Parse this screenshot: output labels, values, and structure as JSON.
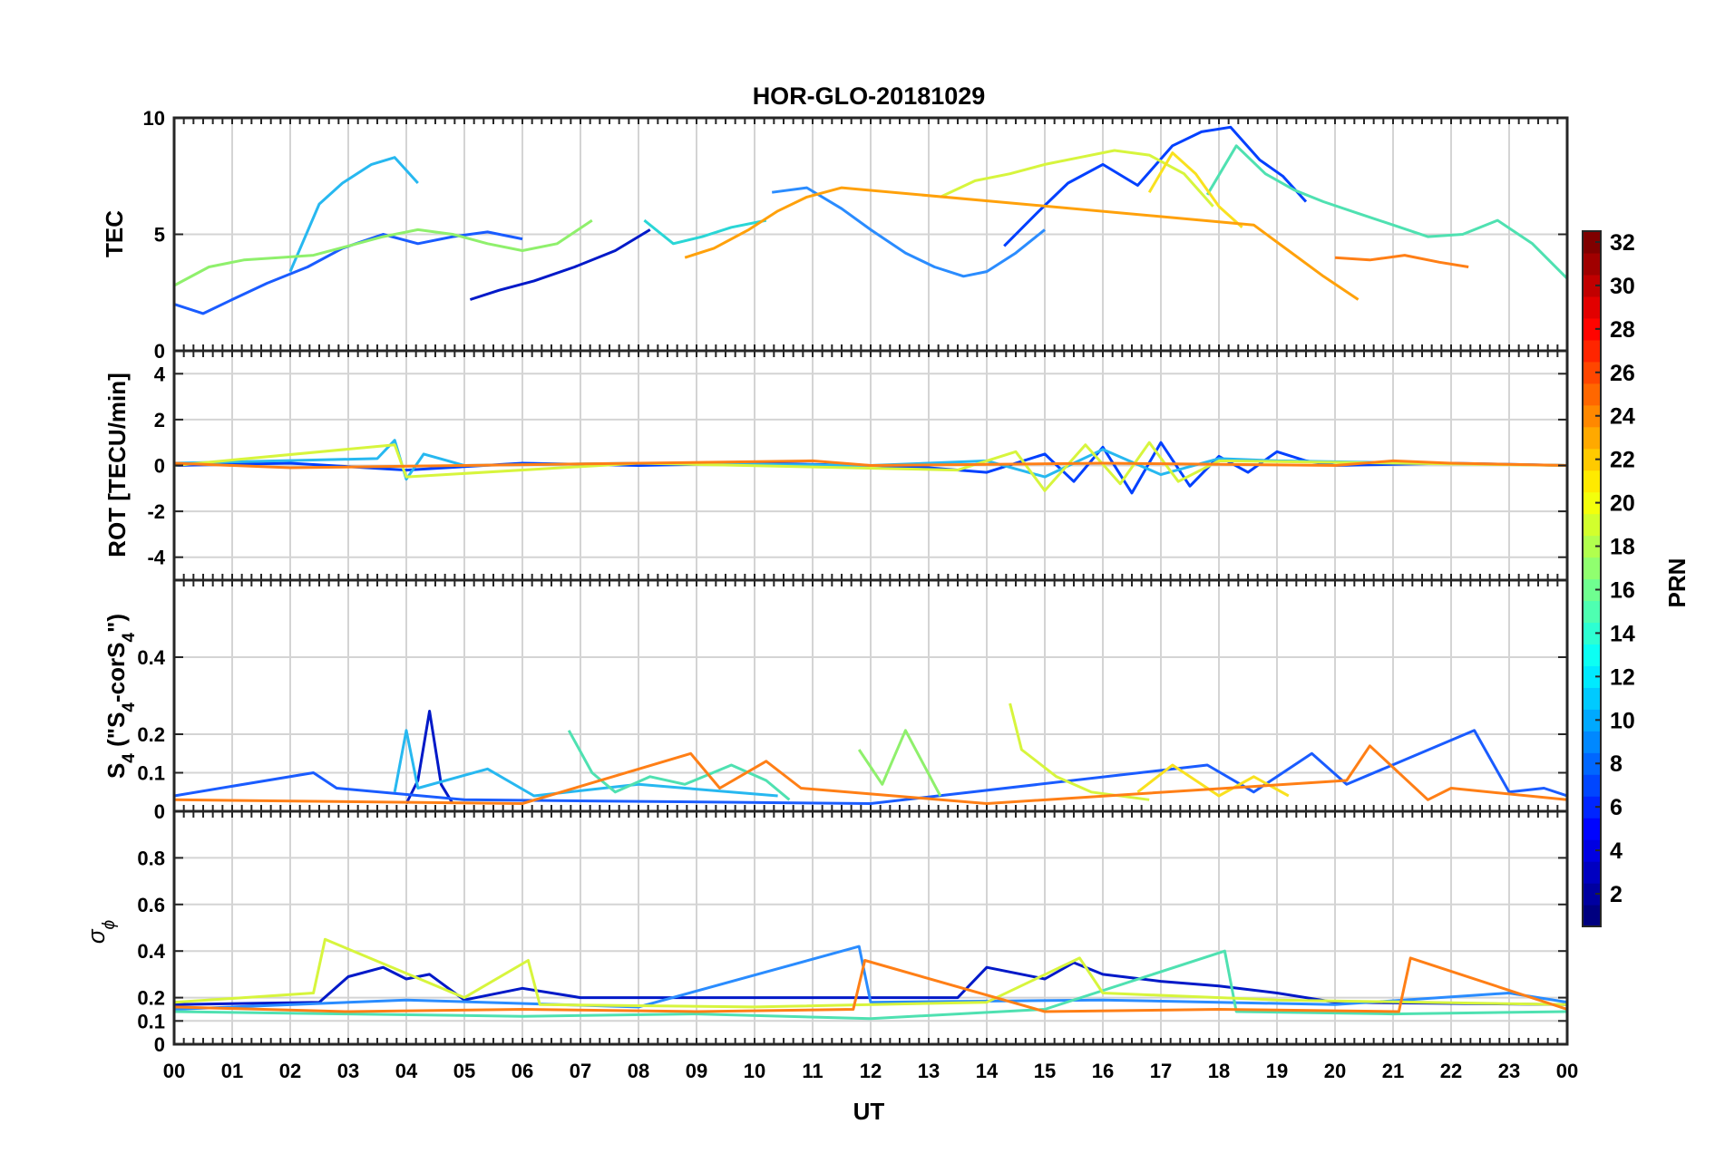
{
  "chart_data": {
    "type": "line",
    "title": "HOR-GLO-20181029",
    "xlabel": "UT",
    "x_tick_labels": [
      "00",
      "01",
      "02",
      "03",
      "04",
      "05",
      "06",
      "07",
      "08",
      "09",
      "10",
      "11",
      "12",
      "13",
      "14",
      "15",
      "16",
      "17",
      "18",
      "19",
      "20",
      "21",
      "22",
      "23",
      "00"
    ],
    "xlim": [
      0,
      24
    ],
    "grid": true,
    "panels": [
      {
        "name": "tec",
        "ylabel": "TEC",
        "ylim": [
          0,
          10
        ],
        "yticks": [
          0,
          5,
          10
        ],
        "ytick_labels": [
          "0",
          "5",
          "10"
        ],
        "series": [
          {
            "prn": 3,
            "color": "#0019c8",
            "x": [
              5.1,
              5.6,
              6.2,
              6.9,
              7.6,
              8.2
            ],
            "y": [
              2.2,
              2.6,
              3.0,
              3.6,
              4.3,
              5.2
            ]
          },
          {
            "prn": 5,
            "color": "#0040ff",
            "x": [
              14.3,
              14.9,
              15.4,
              16.0,
              16.6,
              17.2,
              17.7,
              18.2,
              18.7,
              19.1,
              19.5
            ],
            "y": [
              4.5,
              6.0,
              7.2,
              8.0,
              7.1,
              8.8,
              9.4,
              9.6,
              8.2,
              7.5,
              6.4
            ]
          },
          {
            "prn": 7,
            "color": "#1a5cff",
            "x": [
              0.0,
              0.5,
              1.0,
              1.6,
              2.3,
              2.9,
              3.6,
              4.2,
              4.8,
              5.4,
              6.0
            ],
            "y": [
              2.0,
              1.6,
              2.2,
              2.9,
              3.6,
              4.4,
              5.0,
              4.6,
              4.9,
              5.1,
              4.8
            ]
          },
          {
            "prn": 9,
            "color": "#2a8cff",
            "x": [
              10.3,
              10.9,
              11.5,
              12.0,
              12.6,
              13.1,
              13.6,
              14.0,
              14.5,
              15.0
            ],
            "y": [
              6.8,
              7.0,
              6.1,
              5.2,
              4.2,
              3.6,
              3.2,
              3.4,
              4.2,
              5.2
            ]
          },
          {
            "prn": 11,
            "color": "#27b8f0",
            "x": [
              2.0,
              2.5,
              2.9,
              3.4,
              3.8,
              4.2
            ],
            "y": [
              3.4,
              6.3,
              7.2,
              8.0,
              8.3,
              7.2
            ]
          },
          {
            "prn": 13,
            "color": "#2ad6d6",
            "x": [
              8.1,
              8.6,
              9.1,
              9.6,
              10.2
            ],
            "y": [
              5.6,
              4.6,
              4.9,
              5.3,
              5.6
            ]
          },
          {
            "prn": 15,
            "color": "#4fe1b1",
            "x": [
              17.8,
              18.3,
              18.8,
              19.3,
              19.8,
              20.4,
              21.0,
              21.6,
              22.2,
              22.8,
              23.4,
              24.0
            ],
            "y": [
              6.7,
              8.8,
              7.6,
              6.9,
              6.4,
              5.9,
              5.4,
              4.9,
              5.0,
              5.6,
              4.6,
              3.1
            ]
          },
          {
            "prn": 17,
            "color": "#8ff06c",
            "x": [
              0.0,
              0.6,
              1.2,
              1.8,
              2.4,
              3.0,
              3.6,
              4.2,
              4.8,
              5.4,
              6.0,
              6.6,
              7.2
            ],
            "y": [
              2.8,
              3.6,
              3.9,
              4.0,
              4.1,
              4.5,
              4.9,
              5.2,
              5.0,
              4.6,
              4.3,
              4.6,
              5.6
            ]
          },
          {
            "prn": 19,
            "color": "#d7f53d",
            "x": [
              13.2,
              13.8,
              14.4,
              15.0,
              15.6,
              16.2,
              16.8,
              17.4,
              17.9
            ],
            "y": [
              6.6,
              7.3,
              7.6,
              8.0,
              8.3,
              8.6,
              8.4,
              7.6,
              6.2
            ]
          },
          {
            "prn": 21,
            "color": "#f9e11f",
            "x": [
              16.8,
              17.2,
              17.6,
              18.0,
              18.4
            ],
            "y": [
              6.8,
              8.5,
              7.6,
              6.2,
              5.3
            ]
          },
          {
            "prn": 23,
            "color": "#ffa10b",
            "x": [
              8.8,
              9.3,
              9.9,
              10.4,
              10.9,
              11.5,
              18.6,
              19.2,
              19.8,
              20.4
            ],
            "y": [
              4.0,
              4.4,
              5.2,
              6.0,
              6.6,
              7.0,
              5.4,
              4.3,
              3.2,
              2.2
            ]
          },
          {
            "prn": 25,
            "color": "#ff7f16",
            "x": [
              20.0,
              20.6,
              21.2,
              21.8,
              22.3
            ],
            "y": [
              4.0,
              3.9,
              4.1,
              3.8,
              3.6
            ]
          }
        ]
      },
      {
        "name": "rot",
        "ylabel": "ROT [TECU/min]",
        "ylim": [
          -5,
          5
        ],
        "yticks": [
          -4,
          -2,
          0,
          2,
          4
        ],
        "ytick_labels": [
          "-4",
          "-2",
          "0",
          "2",
          "4"
        ],
        "series": [
          {
            "prn": 5,
            "color": "#0040ff",
            "x": [
              0.0,
              2.0,
              4.0,
              6.0,
              8.0,
              10.0,
              12.0,
              13.0,
              14.0,
              15.0,
              15.5,
              16.0,
              16.5,
              17.0,
              17.5,
              18.0,
              18.5,
              19.0,
              19.5,
              20.0,
              22.0,
              24.0
            ],
            "y": [
              0.0,
              0.1,
              -0.2,
              0.1,
              0.0,
              0.1,
              0.0,
              -0.1,
              -0.3,
              0.5,
              -0.7,
              0.8,
              -1.2,
              1.0,
              -0.9,
              0.4,
              -0.3,
              0.6,
              0.2,
              0.0,
              0.1,
              0.0
            ]
          },
          {
            "prn": 11,
            "color": "#27b8f0",
            "x": [
              0.0,
              3.5,
              3.8,
              4.0,
              4.3,
              5.0,
              8.0,
              12.0,
              14.0,
              15.0,
              16.0,
              17.0,
              18.0,
              19.0,
              24.0
            ],
            "y": [
              0.1,
              0.3,
              1.1,
              -0.6,
              0.5,
              0.0,
              0.1,
              0.0,
              0.2,
              -0.5,
              0.7,
              -0.4,
              0.3,
              0.2,
              0.0
            ]
          },
          {
            "prn": 19,
            "color": "#d7f53d",
            "x": [
              0.0,
              3.8,
              4.0,
              8.0,
              13.5,
              14.5,
              15.0,
              15.7,
              16.3,
              16.8,
              17.3,
              18.0,
              24.0
            ],
            "y": [
              0.0,
              0.9,
              -0.5,
              0.1,
              -0.2,
              0.6,
              -1.1,
              0.9,
              -0.8,
              1.0,
              -0.7,
              0.2,
              0.0
            ]
          },
          {
            "prn": 23,
            "color": "#ff7f16",
            "x": [
              0.0,
              2.0,
              5.0,
              8.0,
              11.0,
              12.0,
              16.0,
              20.0,
              21.0,
              22.0,
              24.0
            ],
            "y": [
              0.1,
              -0.1,
              0.0,
              0.1,
              0.2,
              0.0,
              0.1,
              0.0,
              0.2,
              0.1,
              0.0
            ]
          }
        ]
      },
      {
        "name": "s4",
        "ylabel": "S4 (\"S4-corS4\")",
        "ylim": [
          0,
          0.6
        ],
        "yticks": [
          0,
          0.1,
          0.2,
          0.4
        ],
        "ytick_labels": [
          "0",
          "0.1",
          "0.2",
          "0.4"
        ],
        "series": [
          {
            "prn": 3,
            "color": "#0019c8",
            "x": [
              4.0,
              4.2,
              4.4,
              4.6,
              4.8
            ],
            "y": [
              0.02,
              0.08,
              0.26,
              0.07,
              0.02
            ]
          },
          {
            "prn": 7,
            "color": "#1a5cff",
            "x": [
              0.0,
              2.4,
              2.8,
              5.0,
              12.0,
              17.8,
              18.6,
              19.6,
              20.2,
              22.4,
              23.0,
              23.6,
              24.0
            ],
            "y": [
              0.04,
              0.1,
              0.06,
              0.03,
              0.02,
              0.12,
              0.05,
              0.15,
              0.07,
              0.21,
              0.05,
              0.06,
              0.04
            ]
          },
          {
            "prn": 11,
            "color": "#27b8f0",
            "x": [
              3.8,
              4.0,
              4.2,
              5.4,
              6.2,
              8.0,
              10.4
            ],
            "y": [
              0.05,
              0.21,
              0.06,
              0.11,
              0.04,
              0.07,
              0.04
            ]
          },
          {
            "prn": 15,
            "color": "#4fe1b1",
            "x": [
              6.8,
              7.2,
              7.6,
              8.2,
              8.8,
              9.6,
              10.2,
              10.6
            ],
            "y": [
              0.21,
              0.1,
              0.05,
              0.09,
              0.07,
              0.12,
              0.08,
              0.03
            ]
          },
          {
            "prn": 17,
            "color": "#8ff06c",
            "x": [
              11.8,
              12.2,
              12.6,
              13.2
            ],
            "y": [
              0.16,
              0.07,
              0.21,
              0.04
            ]
          },
          {
            "prn": 19,
            "color": "#d7f53d",
            "x": [
              14.4,
              14.6,
              15.2,
              15.8,
              16.8
            ],
            "y": [
              0.28,
              0.16,
              0.09,
              0.05,
              0.03
            ]
          },
          {
            "prn": 21,
            "color": "#f9e11f",
            "x": [
              16.6,
              17.2,
              18.0,
              18.6,
              19.2
            ],
            "y": [
              0.05,
              0.12,
              0.04,
              0.09,
              0.04
            ]
          },
          {
            "prn": 23,
            "color": "#ff7f16",
            "x": [
              0.0,
              6.0,
              8.9,
              9.4,
              10.2,
              10.8,
              11.6,
              14.0,
              20.2,
              20.6,
              21.6,
              22.0,
              24.0
            ],
            "y": [
              0.03,
              0.02,
              0.15,
              0.06,
              0.13,
              0.06,
              0.05,
              0.02,
              0.08,
              0.17,
              0.03,
              0.06,
              0.03
            ]
          }
        ]
      },
      {
        "name": "sigma",
        "ylabel": "σϕ",
        "ylim": [
          0,
          1
        ],
        "yticks": [
          0,
          0.1,
          0.2,
          0.4,
          0.6,
          0.8
        ],
        "ytick_labels": [
          "0",
          "0.1",
          "0.2",
          "0.4",
          "0.6",
          "0.8"
        ],
        "series": [
          {
            "prn": 3,
            "color": "#0019c8",
            "x": [
              0.0,
              2.5,
              3.0,
              3.6,
              4.0,
              4.4,
              5.0,
              6.0,
              7.0,
              13.5,
              14.0,
              15.0,
              15.5,
              16.0,
              17.0,
              18.0,
              19.0,
              20.0,
              24.0
            ],
            "y": [
              0.17,
              0.18,
              0.29,
              0.33,
              0.28,
              0.3,
              0.19,
              0.24,
              0.2,
              0.2,
              0.33,
              0.28,
              0.35,
              0.3,
              0.27,
              0.25,
              0.22,
              0.18,
              0.17
            ]
          },
          {
            "prn": 9,
            "color": "#2a8cff",
            "x": [
              0.0,
              4.0,
              8.0,
              11.8,
              12.0,
              16.0,
              20.0,
              23.0,
              24.0
            ],
            "y": [
              0.15,
              0.19,
              0.16,
              0.42,
              0.18,
              0.19,
              0.17,
              0.22,
              0.18
            ]
          },
          {
            "prn": 15,
            "color": "#4fe1b1",
            "x": [
              0.0,
              3.0,
              6.0,
              9.0,
              12.0,
              15.0,
              18.1,
              18.3,
              21.0,
              24.0
            ],
            "y": [
              0.14,
              0.13,
              0.12,
              0.13,
              0.11,
              0.15,
              0.4,
              0.14,
              0.13,
              0.14
            ]
          },
          {
            "prn": 19,
            "color": "#d7f53d",
            "x": [
              0.0,
              2.4,
              2.6,
              5.0,
              6.1,
              6.3,
              10.0,
              14.0,
              15.6,
              16.0,
              19.0,
              24.0
            ],
            "y": [
              0.18,
              0.22,
              0.45,
              0.2,
              0.36,
              0.17,
              0.16,
              0.18,
              0.37,
              0.22,
              0.19,
              0.17
            ]
          },
          {
            "prn": 23,
            "color": "#ff7f16",
            "x": [
              0.0,
              3.0,
              6.0,
              9.0,
              11.7,
              11.9,
              15.0,
              18.0,
              21.1,
              21.3,
              24.0
            ],
            "y": [
              0.16,
              0.14,
              0.15,
              0.14,
              0.15,
              0.36,
              0.14,
              0.15,
              0.14,
              0.37,
              0.15
            ]
          }
        ]
      }
    ],
    "colorbar": {
      "label": "PRN",
      "range": [
        1,
        32
      ],
      "tick_labels": [
        "2",
        "4",
        "6",
        "8",
        "10",
        "12",
        "14",
        "16",
        "18",
        "20",
        "22",
        "24",
        "26",
        "28",
        "30",
        "32"
      ],
      "colormap": "jet"
    }
  }
}
